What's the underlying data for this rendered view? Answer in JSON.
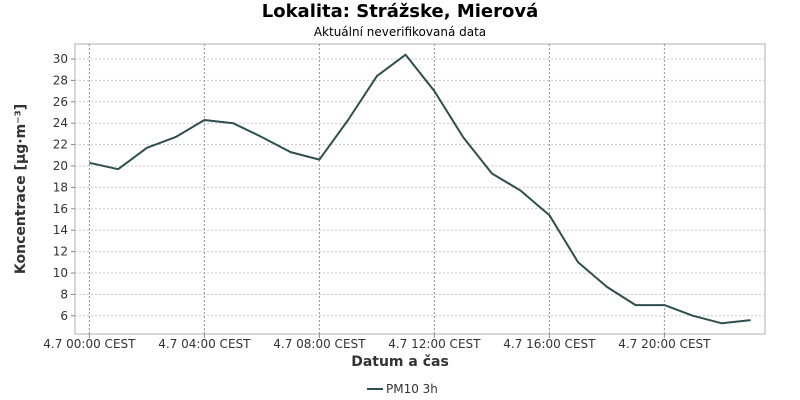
{
  "chart_data": {
    "type": "line",
    "title": "Lokalita: Strážske, Mierová",
    "subtitle": "Aktuální neverifikovaná data",
    "xlabel": "Datum a čas",
    "ylabel": "Koncentrace [µg·m⁻³]",
    "x_tick_labels": [
      "4.7 00:00 CEST",
      "4.7 04:00 CEST",
      "4.7 08:00 CEST",
      "4.7 12:00 CEST",
      "4.7 16:00 CEST",
      "4.7 20:00 CEST"
    ],
    "x_tick_hours": [
      0,
      4,
      8,
      12,
      16,
      20
    ],
    "xlim_hours": [
      -0.5,
      23.5
    ],
    "y_ticks": [
      6,
      8,
      10,
      12,
      14,
      16,
      18,
      20,
      22,
      24,
      26,
      28,
      30
    ],
    "ylim": [
      4.3,
      31.4
    ],
    "grid": true,
    "legend_position": "bottom",
    "series": [
      {
        "name": "PM10 3h",
        "color": "#2f4f4f",
        "x_hours": [
          0,
          1,
          2,
          3,
          4,
          5,
          6,
          7,
          8,
          9,
          10,
          11,
          12,
          13,
          14,
          15,
          16,
          17,
          18,
          19,
          20,
          21,
          22,
          23
        ],
        "values": [
          20.3,
          19.7,
          21.7,
          22.7,
          24.3,
          24.0,
          22.7,
          21.3,
          20.6,
          24.3,
          28.4,
          30.4,
          27.0,
          22.7,
          19.3,
          17.7,
          15.4,
          11.0,
          8.7,
          7.0,
          7.0,
          6.0,
          5.3,
          5.6
        ]
      }
    ]
  }
}
